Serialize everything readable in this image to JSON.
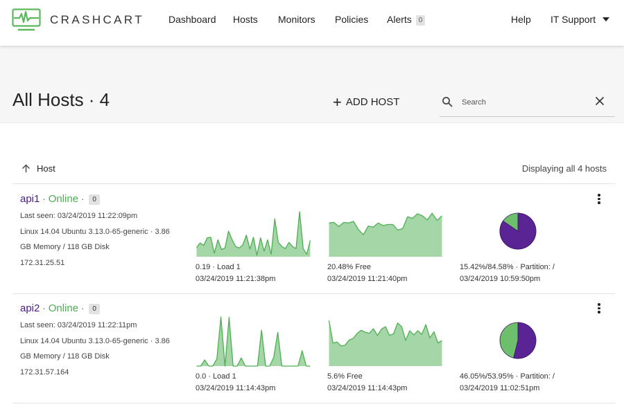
{
  "app": {
    "brand": "CRASHCART"
  },
  "nav": {
    "items": [
      "Dashboard",
      "Hosts",
      "Monitors",
      "Policies",
      "Alerts"
    ],
    "alerts_count": "0",
    "help": "Help",
    "user": "IT Support"
  },
  "page": {
    "title": "All Hosts · 4",
    "add_host": "ADD HOST",
    "search_placeholder": "Search",
    "search_value": ""
  },
  "list": {
    "sort_column": "Host",
    "sort_direction": "ascending",
    "summary": "Displaying all 4 hosts"
  },
  "colors": {
    "accent_green": "#4caf50",
    "spark_fill": "#a5d6a7",
    "spark_line": "#4caf50",
    "pie_used": "#5b2494",
    "pie_free": "#6dbf6b",
    "host_link": "#4a1a8c"
  },
  "hosts": [
    {
      "name": "api1",
      "status": "Online",
      "count": "0",
      "last_seen": "Last seen: 03/24/2019 11:22:09pm",
      "os_line1": "Linux 14.04 Ubuntu 3.13.0-65-generic · 3.86",
      "os_line2": "GB Memory / 118 GB Disk",
      "ip": "172.31.25.51",
      "load": {
        "caption": "0.19 · Load 1",
        "time": "03/24/2019 11:21:38pm",
        "series": [
          0.18,
          0.27,
          0.22,
          0.37,
          0.38,
          0.07,
          0.33,
          0.14,
          0.17,
          0.5,
          0.33,
          0.2,
          0.17,
          0.23,
          0.42,
          0.15,
          0.38,
          0.03,
          0.37,
          0.11,
          0.33,
          0.05,
          0.74,
          0.28,
          0.2,
          0.16,
          0.28,
          0.2,
          0.16,
          0.88,
          0.16,
          0.05,
          0.32
        ]
      },
      "mem": {
        "caption": "20.48% Free",
        "time": "03/24/2019 11:21:40pm",
        "series": [
          0.66,
          0.67,
          0.59,
          0.67,
          0.66,
          0.69,
          0.53,
          0.43,
          0.6,
          0.58,
          0.66,
          0.61,
          0.63,
          0.63,
          0.52,
          0.55,
          0.78,
          0.75,
          0.84,
          0.8,
          0.72,
          0.85,
          0.71,
          0.8
        ]
      },
      "disk": {
        "used_pct": 84.58,
        "free_pct": 15.42,
        "caption": "15.42%/84.58% · Partition: /",
        "time": "03/24/2019 10:59:50pm"
      }
    },
    {
      "name": "api2",
      "status": "Online",
      "count": "0",
      "last_seen": "Last seen: 03/24/2019 11:22:11pm",
      "os_line1": "Linux 14.04 Ubuntu 3.13.0-65-generic · 3.86",
      "os_line2": "GB Memory / 118 GB Disk",
      "ip": "172.31.57.164",
      "load": {
        "caption": "0.0 · Load 1",
        "time": "03/24/2019 11:14:43pm",
        "series": [
          0.0,
          0.0,
          0.12,
          0.0,
          0.0,
          0.14,
          0.96,
          0.0,
          0.95,
          0.0,
          0.0,
          0.16,
          0.0,
          0.0,
          0.0,
          0.0,
          0.7,
          0.0,
          0.0,
          0.17,
          0.66,
          0.0,
          0.0,
          0.0,
          0.0,
          0.0,
          0.3,
          0.0,
          0.0
        ]
      },
      "mem": {
        "caption": "5.6% Free",
        "time": "03/24/2019 11:14:43pm",
        "series": [
          0.89,
          0.45,
          0.47,
          0.39,
          0.41,
          0.51,
          0.54,
          0.64,
          0.7,
          0.66,
          0.64,
          0.73,
          0.6,
          0.72,
          0.77,
          0.6,
          0.63,
          0.84,
          0.77,
          0.5,
          0.69,
          0.61,
          0.69,
          0.62,
          0.81,
          0.55,
          0.67,
          0.45,
          0.5
        ]
      },
      "disk": {
        "used_pct": 53.95,
        "free_pct": 46.05,
        "caption": "46.05%/53.95% · Partition: /",
        "time": "03/24/2019 11:02:51pm"
      }
    }
  ]
}
